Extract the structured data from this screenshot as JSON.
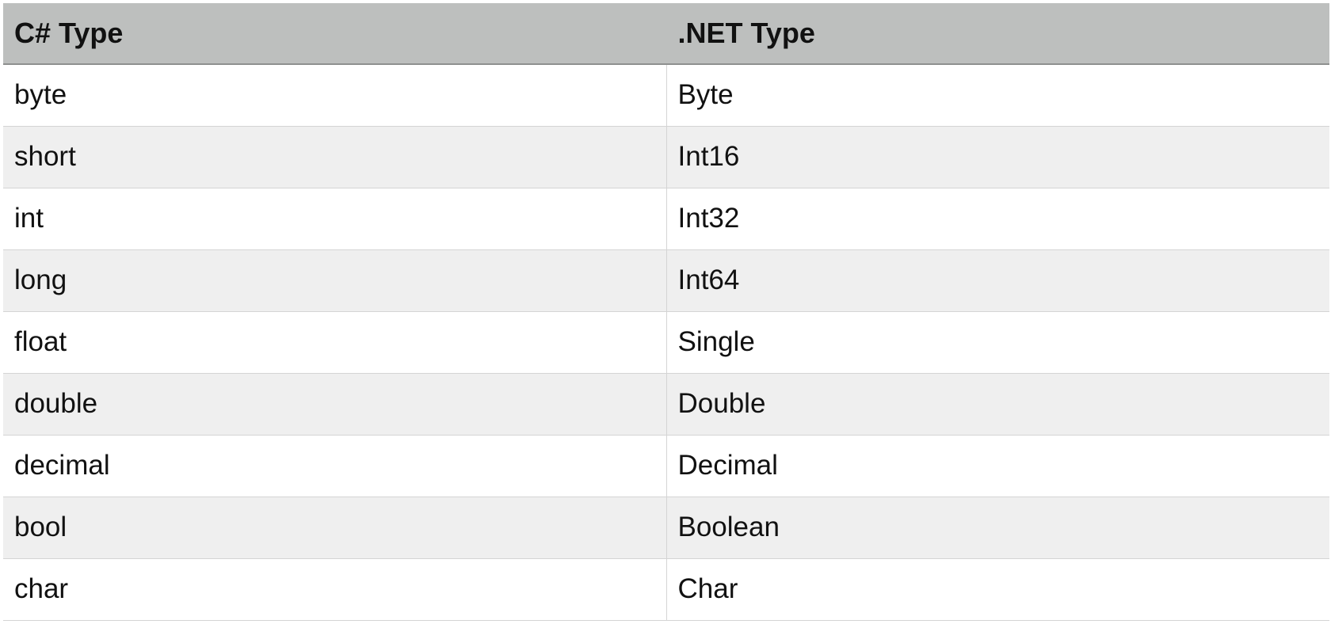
{
  "table": {
    "headers": [
      "C# Type",
      ".NET Type"
    ],
    "rows": [
      [
        "byte",
        "Byte"
      ],
      [
        "short",
        "Int16"
      ],
      [
        "int",
        "Int32"
      ],
      [
        "long",
        "Int64"
      ],
      [
        "float",
        "Single"
      ],
      [
        "double",
        "Double"
      ],
      [
        "decimal",
        "Decimal"
      ],
      [
        "bool",
        "Boolean"
      ],
      [
        "char",
        "Char"
      ]
    ]
  }
}
